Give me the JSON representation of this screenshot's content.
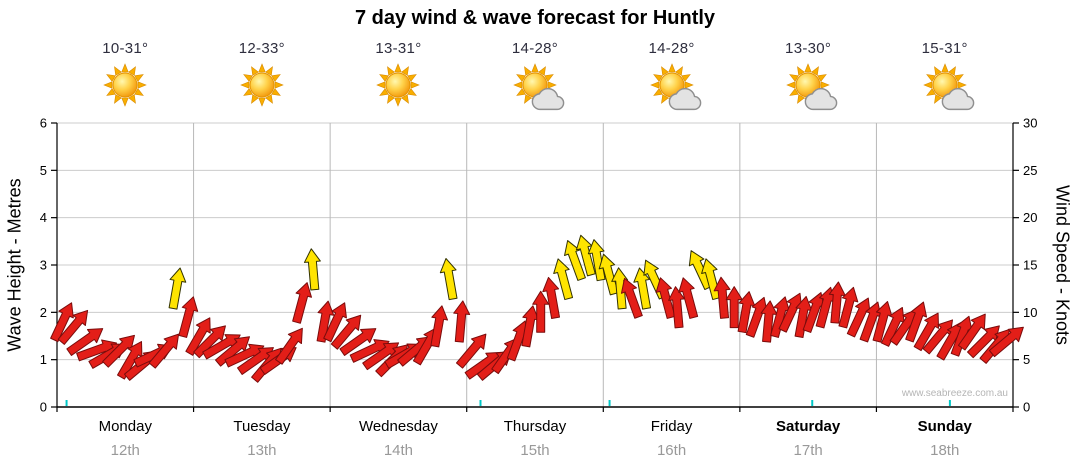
{
  "title": "7 day wind & wave forecast for Huntly",
  "watermark": "www.seabreeze.com.au",
  "axes": {
    "left_label": "Wave Height - Metres",
    "right_label": "Wind Speed - Knots",
    "left_ticks": [
      "0",
      "1",
      "2",
      "3",
      "4",
      "5",
      "6"
    ],
    "right_ticks": [
      "0",
      "5",
      "10",
      "15",
      "20",
      "25",
      "30"
    ]
  },
  "days": [
    {
      "name": "Monday",
      "date": "12th",
      "temp": "10-31°",
      "icon": "sunny",
      "bold": false
    },
    {
      "name": "Tuesday",
      "date": "13th",
      "temp": "12-33°",
      "icon": "sunny",
      "bold": false
    },
    {
      "name": "Wednesday",
      "date": "14th",
      "temp": "13-31°",
      "icon": "sunny",
      "bold": false
    },
    {
      "name": "Thursday",
      "date": "15th",
      "temp": "14-28°",
      "icon": "partly-cloudy",
      "bold": false
    },
    {
      "name": "Friday",
      "date": "16th",
      "temp": "14-28°",
      "icon": "partly-cloudy",
      "bold": false
    },
    {
      "name": "Saturday",
      "date": "17th",
      "temp": "13-30°",
      "icon": "partly-cloudy",
      "bold": true
    },
    {
      "name": "Sunday",
      "date": "18th",
      "temp": "15-31°",
      "icon": "partly-cloudy",
      "bold": true
    }
  ],
  "chart_data": {
    "type": "scatter",
    "subtype": "wind-forecast-arrows",
    "title": "7 day wind & wave forecast for Huntly",
    "ylabel_left": "Wave Height - Metres",
    "ylabel_right": "Wind Speed - Knots",
    "ylim_left": [
      0,
      6
    ],
    "ylim_right": [
      0,
      30
    ],
    "x_days": [
      "Monday 12th",
      "Tuesday 13th",
      "Wednesday 14th",
      "Thursday 15th",
      "Friday 16th",
      "Saturday 17th",
      "Sunday 18th"
    ],
    "points_per_day": 12,
    "interval_hours": 2,
    "legend": "arrow vertical position = wind speed (knots, right axis); arrow rotation = wind direction; red < 12 kn, yellow >= 12 kn",
    "colors": {
      "arrow_red": "#e31e18",
      "arrow_yellow": "#ffe400",
      "grid": "#cccccc",
      "day_separator": "#b8b8b8",
      "date_text": "#999999",
      "tick_minor": "#00c8c8"
    },
    "wind_speed_knots": [
      9,
      8.5,
      7,
      6,
      5.5,
      6,
      5,
      4.5,
      5.5,
      6,
      12.5,
      9.5,
      7.5,
      7,
      6.5,
      6,
      5.5,
      5,
      4.5,
      5,
      6.5,
      11,
      14.5,
      9,
      9,
      8,
      7,
      6,
      5.5,
      5,
      5.5,
      6,
      6.5,
      8.5,
      13.5,
      9,
      6,
      4.5,
      4.5,
      5.5,
      7,
      8.5,
      10,
      11.5,
      13.5,
      15.5,
      16,
      15.5,
      14,
      12.5,
      11.5,
      12.5,
      13.5,
      11.5,
      10.5,
      11.5,
      14.5,
      13.5,
      11.5,
      10.5,
      10,
      9.5,
      9,
      9.5,
      10,
      9.5,
      10,
      10.5,
      11,
      10.5,
      9.5,
      9,
      9,
      8.5,
      8.5,
      9,
      8,
      7.5,
      7,
      7.5,
      8,
      7,
      6.5,
      7
    ],
    "wind_direction_deg": [
      25,
      40,
      55,
      70,
      60,
      45,
      30,
      50,
      65,
      40,
      10,
      15,
      30,
      45,
      60,
      50,
      65,
      55,
      40,
      55,
      35,
      15,
      -5,
      10,
      25,
      40,
      55,
      65,
      55,
      45,
      60,
      50,
      30,
      10,
      -10,
      5,
      40,
      55,
      50,
      35,
      20,
      10,
      0,
      -10,
      -15,
      -20,
      -15,
      -10,
      -15,
      -5,
      -20,
      -10,
      -25,
      -15,
      -5,
      -15,
      -25,
      -15,
      -5,
      0,
      10,
      20,
      5,
      15,
      25,
      10,
      20,
      15,
      5,
      15,
      25,
      20,
      15,
      25,
      35,
      20,
      30,
      40,
      30,
      20,
      35,
      45,
      40,
      50
    ]
  }
}
